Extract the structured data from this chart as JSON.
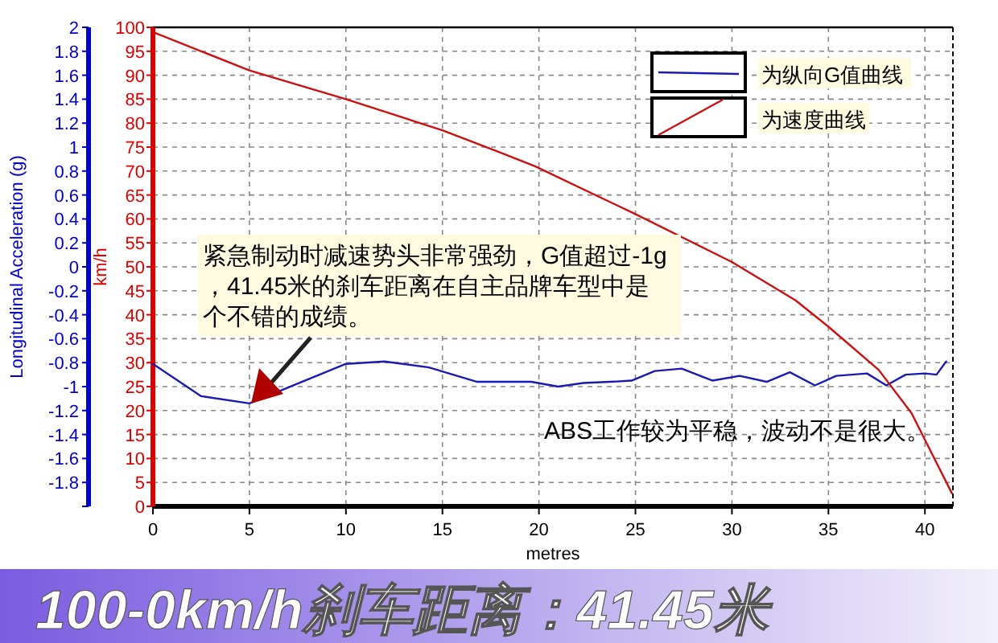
{
  "chart_data": {
    "type": "line",
    "title": "100-0km/h刹车距离：41.45米",
    "xlabel": "metres",
    "ylabel": "km/h",
    "y2label": "Longitudinal Acceleration (g)",
    "xlim": [
      0,
      41.45
    ],
    "xticks": [
      0,
      5,
      10,
      15,
      20,
      25,
      30,
      35,
      40
    ],
    "ylim": [
      0,
      100
    ],
    "yticks": [
      0,
      5,
      10,
      15,
      20,
      25,
      30,
      35,
      40,
      45,
      50,
      55,
      60,
      65,
      70,
      75,
      80,
      85,
      90,
      95,
      100
    ],
    "y2lim": [
      -2,
      2
    ],
    "y2ticks": [
      {
        "value": -2,
        "label": null
      },
      -1.8,
      -1.6,
      -1.4,
      -1.2,
      -1,
      -0.8,
      -0.6,
      -0.4,
      -0.2,
      0,
      0.2,
      0.4,
      0.6,
      0.8,
      1,
      1.2,
      1.4,
      1.6,
      1.8,
      2
    ],
    "grid": true,
    "legend": "top right",
    "line_style": "solid",
    "series": [
      {
        "name": "为纵向G值曲线",
        "color": "#1a1ab4",
        "axis": "y2",
        "x": [
          0,
          2.5,
          5,
          10,
          12,
          14.3,
          16.8,
          19.6,
          21,
          22.3,
          23.7,
          24.8,
          26,
          27.4,
          29,
          30.4,
          31.8,
          33,
          34.3,
          35.4,
          37,
          38,
          39,
          40,
          40.6,
          41.1
        ],
        "values": [
          -0.81,
          -1.08,
          -1.14,
          -0.81,
          -0.79,
          -0.84,
          -0.96,
          -0.96,
          -1.0,
          -0.97,
          -0.96,
          -0.95,
          -0.87,
          -0.85,
          -0.95,
          -0.91,
          -0.96,
          -0.88,
          -0.99,
          -0.91,
          -0.89,
          -0.99,
          -0.9,
          -0.89,
          -0.9,
          -0.79
        ]
      },
      {
        "name": "为速度曲线",
        "color": "#cc1010",
        "axis": "y",
        "x": [
          0,
          5,
          10,
          15,
          17.9,
          19.8,
          25,
          30,
          33.3,
          35,
          37.6,
          39.3,
          40.4,
          41.4
        ],
        "values": [
          99,
          91,
          85,
          78.5,
          74,
          71,
          61,
          51,
          43,
          37.5,
          28.5,
          19.5,
          10.7,
          2.7
        ]
      }
    ],
    "annotations": [
      "紧急制动时减速势头非常强劲，G值超过-1g，41.45米的刹车距离在自主品牌车型中是个不错的成绩。",
      "ABS工作较为平稳，波动不是很大。"
    ]
  }
}
